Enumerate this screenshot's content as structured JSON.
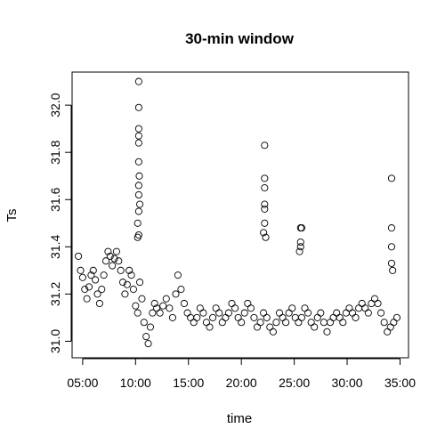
{
  "chart_data": {
    "type": "scatter",
    "title": "30-min window",
    "xlabel": "time",
    "ylabel": "Ts",
    "xlim": [
      4.0,
      35.8
    ],
    "ylim": [
      30.93,
      32.14
    ],
    "x_ticks": [
      {
        "value": 5,
        "label": "05:00"
      },
      {
        "value": 10,
        "label": "10:00"
      },
      {
        "value": 15,
        "label": "15:00"
      },
      {
        "value": 20,
        "label": "20:00"
      },
      {
        "value": 25,
        "label": "25:00"
      },
      {
        "value": 30,
        "label": "30:00"
      },
      {
        "value": 35,
        "label": "35:00"
      }
    ],
    "y_ticks": [
      {
        "value": 31.0,
        "label": "31.0"
      },
      {
        "value": 31.2,
        "label": "31.2"
      },
      {
        "value": 31.4,
        "label": "31.4"
      },
      {
        "value": 31.6,
        "label": "31.6"
      },
      {
        "value": 31.8,
        "label": "31.8"
      },
      {
        "value": 32.0,
        "label": "32.0"
      }
    ],
    "marker": "open-circle",
    "series": [
      {
        "points": [
          [
            4.6,
            31.36
          ],
          [
            4.8,
            31.3
          ],
          [
            5.0,
            31.27
          ],
          [
            5.2,
            31.22
          ],
          [
            5.4,
            31.18
          ],
          [
            5.6,
            31.23
          ],
          [
            5.8,
            31.28
          ],
          [
            6.0,
            31.3
          ],
          [
            6.2,
            31.26
          ],
          [
            6.4,
            31.2
          ],
          [
            6.6,
            31.16
          ],
          [
            6.8,
            31.22
          ],
          [
            7.0,
            31.28
          ],
          [
            7.2,
            31.34
          ],
          [
            7.4,
            31.38
          ],
          [
            7.6,
            31.36
          ],
          [
            7.8,
            31.32
          ],
          [
            8.0,
            31.35
          ],
          [
            8.2,
            31.38
          ],
          [
            8.4,
            31.34
          ],
          [
            8.6,
            31.3
          ],
          [
            8.8,
            31.25
          ],
          [
            9.0,
            31.2
          ],
          [
            9.2,
            31.24
          ],
          [
            9.4,
            31.3
          ],
          [
            9.6,
            31.28
          ],
          [
            9.8,
            31.22
          ],
          [
            10.0,
            31.15
          ],
          [
            10.2,
            31.12
          ],
          [
            10.4,
            31.25
          ],
          [
            10.6,
            31.18
          ],
          [
            10.8,
            31.08
          ],
          [
            11.0,
            31.02
          ],
          [
            11.2,
            30.99
          ],
          [
            11.4,
            31.06
          ],
          [
            11.6,
            31.12
          ],
          [
            11.8,
            31.16
          ],
          [
            12.0,
            31.14
          ],
          [
            12.3,
            31.12
          ],
          [
            12.6,
            31.15
          ],
          [
            12.9,
            31.18
          ],
          [
            13.2,
            31.14
          ],
          [
            13.5,
            31.1
          ],
          [
            13.8,
            31.2
          ],
          [
            14.0,
            31.28
          ],
          [
            14.3,
            31.22
          ],
          [
            14.6,
            31.16
          ],
          [
            14.9,
            31.12
          ],
          [
            15.2,
            31.1
          ],
          [
            15.5,
            31.08
          ],
          [
            15.8,
            31.1
          ],
          [
            16.1,
            31.14
          ],
          [
            16.4,
            31.12
          ],
          [
            16.7,
            31.08
          ],
          [
            17.0,
            31.06
          ],
          [
            17.3,
            31.1
          ],
          [
            17.6,
            31.14
          ],
          [
            17.9,
            31.12
          ],
          [
            18.2,
            31.08
          ],
          [
            18.5,
            31.1
          ],
          [
            18.8,
            31.12
          ],
          [
            19.1,
            31.16
          ],
          [
            19.4,
            31.14
          ],
          [
            19.7,
            31.1
          ],
          [
            20.0,
            31.08
          ],
          [
            20.3,
            31.12
          ],
          [
            20.6,
            31.16
          ],
          [
            20.9,
            31.14
          ],
          [
            21.2,
            31.1
          ],
          [
            21.5,
            31.06
          ],
          [
            21.8,
            31.08
          ],
          [
            22.1,
            31.12
          ],
          [
            22.4,
            31.1
          ],
          [
            22.7,
            31.06
          ],
          [
            23.0,
            31.04
          ],
          [
            23.3,
            31.08
          ],
          [
            23.6,
            31.12
          ],
          [
            23.9,
            31.1
          ],
          [
            24.2,
            31.08
          ],
          [
            24.5,
            31.12
          ],
          [
            24.8,
            31.14
          ],
          [
            25.1,
            31.1
          ],
          [
            25.4,
            31.08
          ],
          [
            25.7,
            31.1
          ],
          [
            26.0,
            31.14
          ],
          [
            26.3,
            31.12
          ],
          [
            26.6,
            31.08
          ],
          [
            26.9,
            31.06
          ],
          [
            27.2,
            31.1
          ],
          [
            27.5,
            31.12
          ],
          [
            27.8,
            31.08
          ],
          [
            28.1,
            31.04
          ],
          [
            28.4,
            31.08
          ],
          [
            28.7,
            31.1
          ],
          [
            29.0,
            31.12
          ],
          [
            29.3,
            31.1
          ],
          [
            29.6,
            31.08
          ],
          [
            29.9,
            31.12
          ],
          [
            30.2,
            31.14
          ],
          [
            30.5,
            31.12
          ],
          [
            30.8,
            31.1
          ],
          [
            31.1,
            31.14
          ],
          [
            31.4,
            31.16
          ],
          [
            31.7,
            31.14
          ],
          [
            32.0,
            31.12
          ],
          [
            32.3,
            31.16
          ],
          [
            32.6,
            31.18
          ],
          [
            32.9,
            31.16
          ],
          [
            33.2,
            31.12
          ],
          [
            33.5,
            31.08
          ],
          [
            33.8,
            31.04
          ],
          [
            34.1,
            31.06
          ],
          [
            34.4,
            31.08
          ],
          [
            34.7,
            31.1
          ],
          [
            10.3,
            31.45
          ],
          [
            10.3,
            31.55
          ],
          [
            10.3,
            31.62
          ],
          [
            10.3,
            31.66
          ],
          [
            10.3,
            31.76
          ],
          [
            10.3,
            31.84
          ],
          [
            10.3,
            31.87
          ],
          [
            10.3,
            31.9
          ],
          [
            10.3,
            31.99
          ],
          [
            10.3,
            32.1
          ],
          [
            10.2,
            31.5
          ],
          [
            10.4,
            31.58
          ],
          [
            10.2,
            31.44
          ],
          [
            10.35,
            31.7
          ],
          [
            22.2,
            31.5
          ],
          [
            22.2,
            31.58
          ],
          [
            22.2,
            31.65
          ],
          [
            22.2,
            31.69
          ],
          [
            22.2,
            31.83
          ],
          [
            22.1,
            31.46
          ],
          [
            22.3,
            31.44
          ],
          [
            22.2,
            31.56
          ],
          [
            25.6,
            31.42
          ],
          [
            25.6,
            31.48
          ],
          [
            25.7,
            31.48
          ],
          [
            25.6,
            31.4
          ],
          [
            25.5,
            31.38
          ],
          [
            34.2,
            31.69
          ],
          [
            34.2,
            31.48
          ],
          [
            34.2,
            31.33
          ],
          [
            34.3,
            31.3
          ],
          [
            34.2,
            31.4
          ]
        ]
      }
    ]
  }
}
